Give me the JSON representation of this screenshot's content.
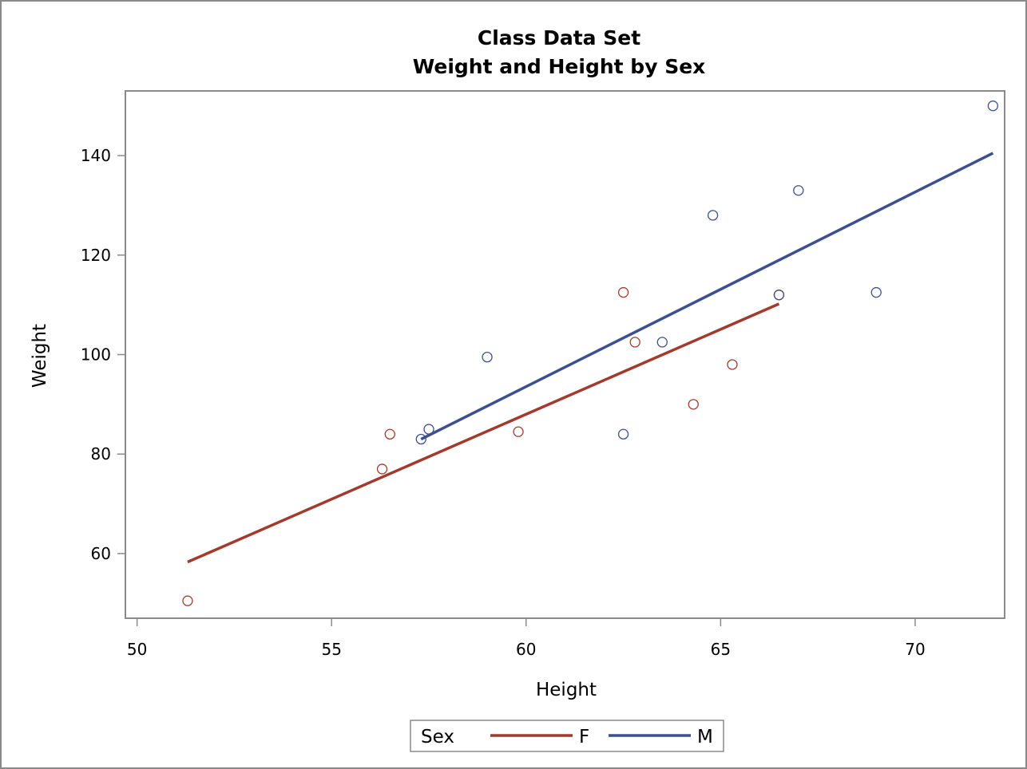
{
  "chart_data": {
    "type": "scatter",
    "title": "Class Data Set",
    "subtitle": "Weight and Height by Sex",
    "xlabel": "Height",
    "ylabel": "Weight",
    "xlim": [
      49.7,
      72.3
    ],
    "ylim": [
      47.0,
      153.0
    ],
    "xticks": [
      50,
      55,
      60,
      65,
      70
    ],
    "yticks": [
      60,
      80,
      100,
      120,
      140
    ],
    "grid": false,
    "legend": {
      "title": "Sex",
      "position": "bottom-center"
    },
    "series": [
      {
        "name": "F",
        "color": "#a23a2e",
        "points": [
          [
            51.3,
            50.5
          ],
          [
            56.3,
            77.0
          ],
          [
            56.5,
            84.0
          ],
          [
            59.8,
            84.5
          ],
          [
            62.5,
            112.5
          ],
          [
            62.8,
            102.5
          ],
          [
            64.3,
            90.0
          ],
          [
            65.3,
            98.0
          ],
          [
            66.5,
            112.0
          ]
        ],
        "fit": [
          [
            51.3,
            58.3
          ],
          [
            66.5,
            110.2
          ]
        ]
      },
      {
        "name": "M",
        "color": "#3c4f8e",
        "points": [
          [
            57.3,
            83.0
          ],
          [
            57.5,
            85.0
          ],
          [
            59.0,
            99.5
          ],
          [
            62.5,
            84.0
          ],
          [
            63.5,
            102.5
          ],
          [
            64.8,
            128.0
          ],
          [
            66.5,
            112.0
          ],
          [
            67.0,
            133.0
          ],
          [
            69.0,
            112.5
          ],
          [
            72.0,
            150.0
          ]
        ],
        "fit": [
          [
            57.3,
            83.0
          ],
          [
            72.0,
            140.5
          ]
        ]
      }
    ]
  }
}
